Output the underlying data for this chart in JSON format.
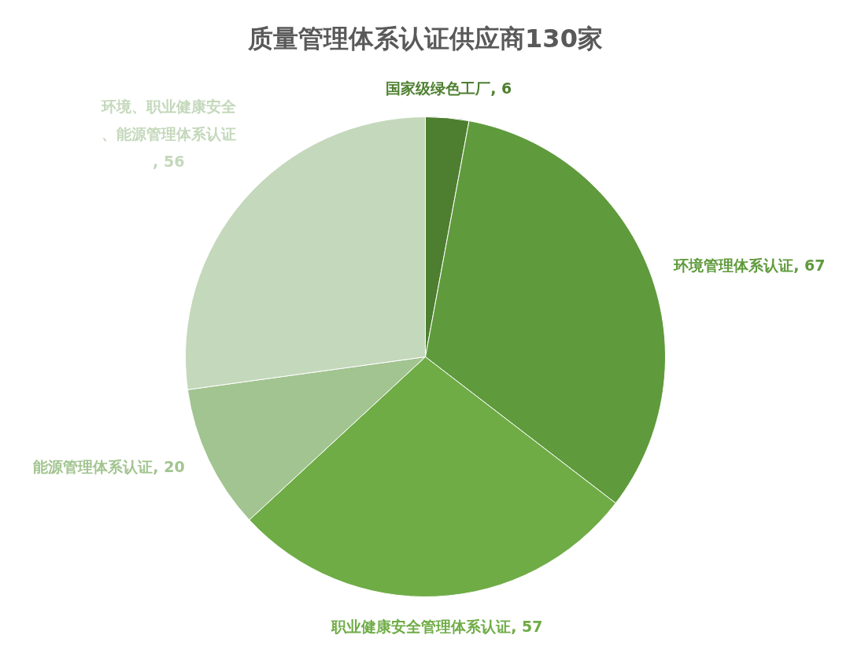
{
  "chart_data": {
    "type": "pie",
    "title": "质量管理体系认证供应商130家",
    "categories": [
      "国家级绿色工厂, 6",
      "环境管理体系认证, 67",
      "职业健康安全管理体系认证, 57",
      "能源管理体系认证, 20",
      "环境、职业健康安全、能源管理体系认证, 56"
    ],
    "values": [
      6,
      67,
      57,
      20,
      56
    ],
    "colors": [
      "#4e7f30",
      "#5f9a3c",
      "#6fac46",
      "#a2c490",
      "#c4d8bb"
    ]
  }
}
